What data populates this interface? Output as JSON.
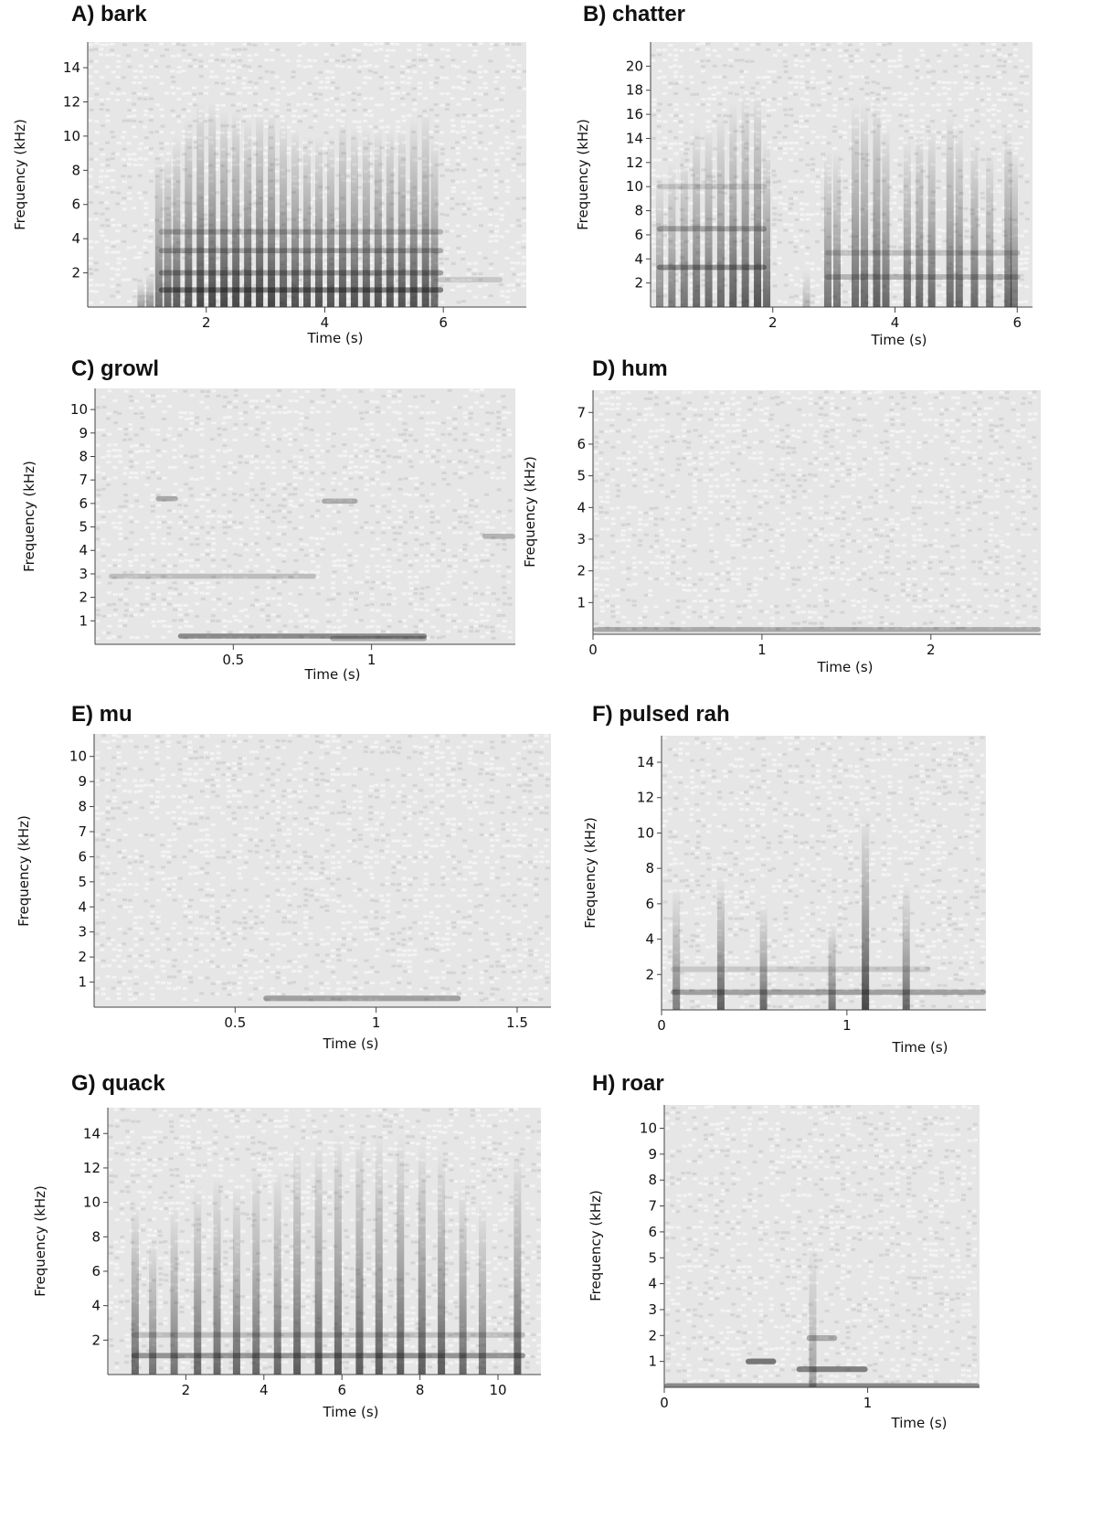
{
  "panels": [
    {
      "title": "A) bark",
      "chart_data": {
        "type": "heatmap",
        "title": "A) bark",
        "xlabel": "Time (s)",
        "ylabel": "Frequency (kHz)",
        "xlim": [
          0,
          7.4
        ],
        "ylim": [
          0,
          15.5
        ],
        "x_ticks": [
          2,
          4,
          6
        ],
        "y_ticks": [
          2,
          4,
          6,
          8,
          10,
          12,
          14
        ],
        "pulses": [
          {
            "t": 0.9,
            "top": 1.5,
            "a": 0.35
          },
          {
            "t": 1.05,
            "top": 2,
            "a": 0.4
          },
          {
            "t": 1.2,
            "top": 9,
            "a": 0.55
          },
          {
            "t": 1.35,
            "top": 9,
            "a": 0.6
          },
          {
            "t": 1.5,
            "top": 10,
            "a": 0.65
          },
          {
            "t": 1.7,
            "top": 11,
            "a": 0.7
          },
          {
            "t": 1.9,
            "top": 12,
            "a": 0.75
          },
          {
            "t": 2.1,
            "top": 12,
            "a": 0.75
          },
          {
            "t": 2.3,
            "top": 11.5,
            "a": 0.75
          },
          {
            "t": 2.5,
            "top": 11.5,
            "a": 0.75
          },
          {
            "t": 2.7,
            "top": 11,
            "a": 0.75
          },
          {
            "t": 2.9,
            "top": 11.5,
            "a": 0.75
          },
          {
            "t": 3.1,
            "top": 11.5,
            "a": 0.75
          },
          {
            "t": 3.3,
            "top": 11,
            "a": 0.7
          },
          {
            "t": 3.5,
            "top": 10.5,
            "a": 0.7
          },
          {
            "t": 3.7,
            "top": 10,
            "a": 0.7
          },
          {
            "t": 3.9,
            "top": 10,
            "a": 0.7
          },
          {
            "t": 4.1,
            "top": 10,
            "a": 0.7
          },
          {
            "t": 4.3,
            "top": 11,
            "a": 0.7
          },
          {
            "t": 4.5,
            "top": 10.5,
            "a": 0.7
          },
          {
            "t": 4.7,
            "top": 10.5,
            "a": 0.7
          },
          {
            "t": 4.9,
            "top": 10.5,
            "a": 0.7
          },
          {
            "t": 5.1,
            "top": 10.5,
            "a": 0.7
          },
          {
            "t": 5.3,
            "top": 10.5,
            "a": 0.7
          },
          {
            "t": 5.5,
            "top": 11,
            "a": 0.7
          },
          {
            "t": 5.7,
            "top": 11.5,
            "a": 0.7
          },
          {
            "t": 5.85,
            "top": 10,
            "a": 0.6
          }
        ],
        "harmonics": [
          {
            "f": 1.0,
            "t0": 1.2,
            "t1": 6.0,
            "a": 0.5
          },
          {
            "f": 2.0,
            "t0": 1.2,
            "t1": 6.0,
            "a": 0.35
          },
          {
            "f": 3.3,
            "t0": 1.2,
            "t1": 6.0,
            "a": 0.3
          },
          {
            "f": 4.4,
            "t0": 1.2,
            "t1": 6.0,
            "a": 0.25
          },
          {
            "f": 1.6,
            "t0": 5.9,
            "t1": 7.0,
            "a": 0.15
          }
        ]
      }
    },
    {
      "title": "B) chatter",
      "chart_data": {
        "type": "heatmap",
        "title": "B) chatter",
        "xlabel": "Time (s)",
        "ylabel": "Frequency (kHz)",
        "xlim": [
          0,
          6.25
        ],
        "ylim": [
          0,
          22
        ],
        "x_ticks": [
          2,
          4,
          6
        ],
        "y_ticks": [
          2,
          4,
          6,
          8,
          10,
          12,
          14,
          16,
          18,
          20
        ],
        "pulses": [
          {
            "t": 0.15,
            "top": 11,
            "a": 0.45
          },
          {
            "t": 0.35,
            "top": 12,
            "a": 0.5
          },
          {
            "t": 0.55,
            "top": 13,
            "a": 0.55
          },
          {
            "t": 0.75,
            "top": 15,
            "a": 0.6
          },
          {
            "t": 0.95,
            "top": 15,
            "a": 0.6
          },
          {
            "t": 1.15,
            "top": 16,
            "a": 0.6
          },
          {
            "t": 1.35,
            "top": 17,
            "a": 0.65
          },
          {
            "t": 1.55,
            "top": 18,
            "a": 0.65
          },
          {
            "t": 1.75,
            "top": 18,
            "a": 0.7
          },
          {
            "t": 1.9,
            "top": 14,
            "a": 0.6
          },
          {
            "t": 2.55,
            "top": 3,
            "a": 0.25
          },
          {
            "t": 2.9,
            "top": 13,
            "a": 0.55
          },
          {
            "t": 3.05,
            "top": 13,
            "a": 0.55
          },
          {
            "t": 3.35,
            "top": 17,
            "a": 0.6
          },
          {
            "t": 3.5,
            "top": 17,
            "a": 0.6
          },
          {
            "t": 3.7,
            "top": 17.5,
            "a": 0.65
          },
          {
            "t": 3.85,
            "top": 15,
            "a": 0.6
          },
          {
            "t": 4.2,
            "top": 14,
            "a": 0.6
          },
          {
            "t": 4.4,
            "top": 15,
            "a": 0.6
          },
          {
            "t": 4.6,
            "top": 15,
            "a": 0.6
          },
          {
            "t": 4.9,
            "top": 16,
            "a": 0.6
          },
          {
            "t": 5.05,
            "top": 15,
            "a": 0.6
          },
          {
            "t": 5.3,
            "top": 14,
            "a": 0.6
          },
          {
            "t": 5.55,
            "top": 13,
            "a": 0.55
          },
          {
            "t": 5.85,
            "top": 15,
            "a": 0.6
          },
          {
            "t": 5.95,
            "top": 13,
            "a": 0.55
          }
        ],
        "harmonics": [
          {
            "f": 3.3,
            "t0": 0.1,
            "t1": 1.9,
            "a": 0.4
          },
          {
            "f": 6.5,
            "t0": 0.1,
            "t1": 1.9,
            "a": 0.3
          },
          {
            "f": 10.0,
            "t0": 0.1,
            "t1": 1.9,
            "a": 0.15
          },
          {
            "f": 2.5,
            "t0": 2.85,
            "t1": 6.05,
            "a": 0.25
          },
          {
            "f": 4.5,
            "t0": 2.85,
            "t1": 6.05,
            "a": 0.2
          }
        ]
      }
    },
    {
      "title": "C) growl",
      "chart_data": {
        "type": "heatmap",
        "title": "C) growl",
        "xlabel": "Time (s)",
        "ylabel": "Frequency (kHz)",
        "xlim": [
          0,
          1.52
        ],
        "ylim": [
          0,
          10.9
        ],
        "x_ticks": [
          0.5,
          1
        ],
        "y_ticks": [
          1,
          2,
          3,
          4,
          5,
          6,
          7,
          8,
          9,
          10
        ],
        "pulses": [],
        "harmonics": [
          {
            "f": 0.35,
            "t0": 0.3,
            "t1": 1.2,
            "a": 0.45
          },
          {
            "f": 0.25,
            "t0": 0.85,
            "t1": 1.2,
            "a": 0.3
          },
          {
            "f": 2.9,
            "t0": 0.05,
            "t1": 0.8,
            "a": 0.2
          },
          {
            "f": 6.2,
            "t0": 0.22,
            "t1": 0.3,
            "a": 0.3
          },
          {
            "f": 6.1,
            "t0": 0.82,
            "t1": 0.95,
            "a": 0.3
          },
          {
            "f": 4.6,
            "t0": 1.4,
            "t1": 1.52,
            "a": 0.25
          }
        ]
      }
    },
    {
      "title": "D) hum",
      "chart_data": {
        "type": "heatmap",
        "title": "D) hum",
        "xlabel": "Time (s)",
        "ylabel": "Frequency (kHz)",
        "xlim": [
          0,
          2.65
        ],
        "ylim": [
          0,
          7.7
        ],
        "x_ticks": [
          0,
          1,
          2
        ],
        "y_ticks": [
          1,
          2,
          3,
          4,
          5,
          6,
          7
        ],
        "pulses": [],
        "harmonics": [
          {
            "f": 0.15,
            "t0": 0.0,
            "t1": 2.65,
            "a": 0.3
          }
        ]
      }
    },
    {
      "title": "E) mu",
      "chart_data": {
        "type": "heatmap",
        "title": "E) mu",
        "xlabel": "Time (s)",
        "ylabel": "Frequency (kHz)",
        "xlim": [
          0,
          1.62
        ],
        "ylim": [
          0,
          10.9
        ],
        "x_ticks": [
          0.5,
          1,
          1.5
        ],
        "y_ticks": [
          1,
          2,
          3,
          4,
          5,
          6,
          7,
          8,
          9,
          10
        ],
        "pulses": [],
        "harmonics": [
          {
            "f": 0.35,
            "t0": 0.6,
            "t1": 1.3,
            "a": 0.35
          }
        ]
      }
    },
    {
      "title": "F) pulsed rah",
      "chart_data": {
        "type": "heatmap",
        "title": "F) pulsed rah",
        "xlabel": "Time (s)",
        "ylabel": "Frequency (kHz)",
        "xlim": [
          0,
          1.75
        ],
        "ylim": [
          0,
          15.5
        ],
        "x_ticks": [
          0,
          1
        ],
        "y_ticks": [
          2,
          4,
          6,
          8,
          10,
          12,
          14
        ],
        "pulses": [
          {
            "t": 0.08,
            "top": 7,
            "a": 0.5
          },
          {
            "t": 0.32,
            "top": 7.5,
            "a": 0.65
          },
          {
            "t": 0.55,
            "top": 6,
            "a": 0.6
          },
          {
            "t": 0.92,
            "top": 5,
            "a": 0.55
          },
          {
            "t": 1.1,
            "top": 11,
            "a": 0.75
          },
          {
            "t": 1.32,
            "top": 7,
            "a": 0.6
          }
        ],
        "harmonics": [
          {
            "f": 1.0,
            "t0": 0.05,
            "t1": 1.75,
            "a": 0.35
          },
          {
            "f": 2.3,
            "t0": 0.05,
            "t1": 1.45,
            "a": 0.15
          }
        ]
      }
    },
    {
      "title": "G) quack",
      "chart_data": {
        "type": "heatmap",
        "title": "G) quack",
        "xlabel": "Time (s)",
        "ylabel": "Frequency (kHz)",
        "xlim": [
          0,
          11.1
        ],
        "ylim": [
          0,
          15.5
        ],
        "x_ticks": [
          2,
          4,
          6,
          8,
          10
        ],
        "y_ticks": [
          2,
          4,
          6,
          8,
          10,
          12,
          14
        ],
        "pulses": [
          {
            "t": 0.7,
            "top": 10,
            "a": 0.6
          },
          {
            "t": 1.15,
            "top": 8,
            "a": 0.55
          },
          {
            "t": 1.7,
            "top": 10,
            "a": 0.55
          },
          {
            "t": 2.3,
            "top": 11,
            "a": 0.6
          },
          {
            "t": 2.8,
            "top": 11.5,
            "a": 0.6
          },
          {
            "t": 3.3,
            "top": 11,
            "a": 0.6
          },
          {
            "t": 3.8,
            "top": 12,
            "a": 0.6
          },
          {
            "t": 4.35,
            "top": 12,
            "a": 0.6
          },
          {
            "t": 4.85,
            "top": 13.5,
            "a": 0.65
          },
          {
            "t": 5.4,
            "top": 13.5,
            "a": 0.65
          },
          {
            "t": 5.9,
            "top": 14,
            "a": 0.65
          },
          {
            "t": 6.45,
            "top": 14,
            "a": 0.65
          },
          {
            "t": 6.95,
            "top": 14,
            "a": 0.65
          },
          {
            "t": 7.5,
            "top": 14,
            "a": 0.65
          },
          {
            "t": 8.05,
            "top": 13.5,
            "a": 0.65
          },
          {
            "t": 8.55,
            "top": 13,
            "a": 0.65
          },
          {
            "t": 9.1,
            "top": 11,
            "a": 0.6
          },
          {
            "t": 9.6,
            "top": 10,
            "a": 0.55
          },
          {
            "t": 10.5,
            "top": 13,
            "a": 0.65
          }
        ],
        "harmonics": [
          {
            "f": 1.1,
            "t0": 0.6,
            "t1": 10.7,
            "a": 0.4
          },
          {
            "f": 2.3,
            "t0": 0.6,
            "t1": 10.7,
            "a": 0.2
          }
        ]
      }
    },
    {
      "title": "H) roar",
      "chart_data": {
        "type": "heatmap",
        "title": "H) roar",
        "xlabel": "Time (s)",
        "ylabel": "Frequency (kHz)",
        "xlim": [
          0,
          1.55
        ],
        "ylim": [
          0,
          10.9
        ],
        "x_ticks": [
          0,
          1
        ],
        "y_ticks": [
          1,
          2,
          3,
          4,
          5,
          6,
          7,
          8,
          9,
          10
        ],
        "pulses": [
          {
            "t": 0.73,
            "top": 5.5,
            "a": 0.35
          }
        ],
        "harmonics": [
          {
            "f": 1.0,
            "t0": 0.4,
            "t1": 0.55,
            "a": 0.55
          },
          {
            "f": 0.7,
            "t0": 0.65,
            "t1": 1.0,
            "a": 0.5
          },
          {
            "f": 1.9,
            "t0": 0.7,
            "t1": 0.85,
            "a": 0.3
          },
          {
            "f": 0.05,
            "t0": 0.0,
            "t1": 1.55,
            "a": 0.45
          }
        ]
      }
    }
  ]
}
